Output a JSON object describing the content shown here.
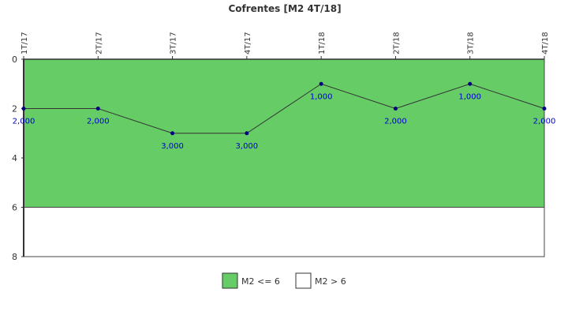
{
  "chart_data": {
    "type": "line",
    "title": "Cofrentes [M2 4T/18]",
    "categories": [
      "1T/17",
      "2T/17",
      "3T/17",
      "4T/17",
      "1T/18",
      "2T/18",
      "3T/18",
      "4T/18"
    ],
    "series": [
      {
        "values": [
          2,
          2,
          3,
          3,
          1,
          2,
          1,
          2
        ],
        "labels": [
          "2,000",
          "2,000",
          "3,000",
          "3,000",
          "1,000",
          "2,000",
          "1,000",
          "2,000"
        ],
        "color": "#333333",
        "marker_color": "#000080"
      }
    ],
    "y_axis": {
      "ylim": [
        0,
        8
      ],
      "inverted": true,
      "ticks": [
        "0",
        "2",
        "4",
        "6",
        "8"
      ],
      "tick_values": [
        0,
        2,
        4,
        6,
        8
      ]
    },
    "x_axis": {
      "position": "top",
      "tick_rotation": "vertical"
    },
    "bands": [
      {
        "name": "M2 <= 6",
        "from": 0,
        "to": 6,
        "color": "#66cc66"
      },
      {
        "name": "M2 > 6",
        "from": 6,
        "to": 8,
        "color": "#ffffff"
      }
    ],
    "legend": {
      "placement": "bottom-center",
      "items": [
        {
          "label": "M2 <= 6",
          "color": "#66cc66"
        },
        {
          "label": "M2 > 6",
          "color": "#ffffff"
        }
      ]
    },
    "grid": false
  }
}
